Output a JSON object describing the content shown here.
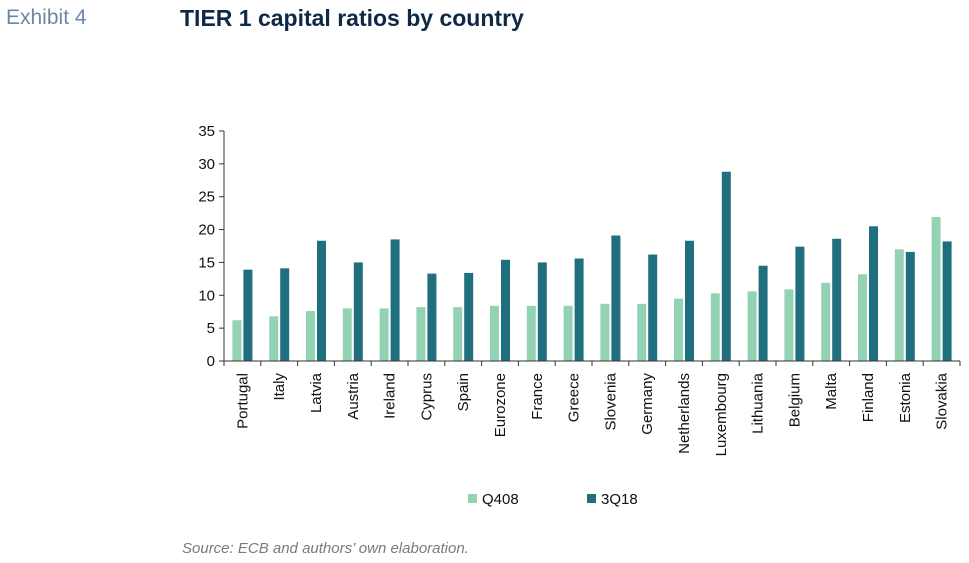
{
  "header": {
    "exhibit_label": "Exhibit 4",
    "title": "TIER 1 capital ratios by country"
  },
  "footer": {
    "source": "Source: ECB and authors’ own elaboration."
  },
  "colors": {
    "series_q408": "#93d2b2",
    "series_3q18": "#1f6f7f",
    "axis": "#333333"
  },
  "chart_data": {
    "type": "bar",
    "title": "TIER 1 capital ratios by country",
    "xlabel": "",
    "ylabel": "",
    "ylim": [
      0,
      35
    ],
    "yticks": [
      0,
      5,
      10,
      15,
      20,
      25,
      30,
      35
    ],
    "grid": false,
    "legend_position": "bottom",
    "categories": [
      "Portugal",
      "Italy",
      "Latvia",
      "Austria",
      "Ireland",
      "Cyprus",
      "Spain",
      "Eurozone",
      "France",
      "Greece",
      "Slovenia",
      "Germany",
      "Netherlands",
      "Luxembourg",
      "Lithuania",
      "Belgium",
      "Malta",
      "Finland",
      "Estonia",
      "Slovakia"
    ],
    "series": [
      {
        "name": "Q408",
        "color": "#93d2b2",
        "values": [
          6.2,
          6.8,
          7.6,
          8.0,
          8.0,
          8.2,
          8.2,
          8.4,
          8.4,
          8.4,
          8.7,
          8.7,
          9.5,
          10.3,
          10.6,
          10.9,
          11.9,
          13.2,
          17.0,
          21.9
        ]
      },
      {
        "name": "3Q18",
        "color": "#1f6f7f",
        "values": [
          13.9,
          14.1,
          18.3,
          15.0,
          18.5,
          13.3,
          13.4,
          15.4,
          15.0,
          15.6,
          19.1,
          16.2,
          18.3,
          28.8,
          14.5,
          17.4,
          18.6,
          20.5,
          16.6,
          18.2
        ]
      }
    ]
  }
}
